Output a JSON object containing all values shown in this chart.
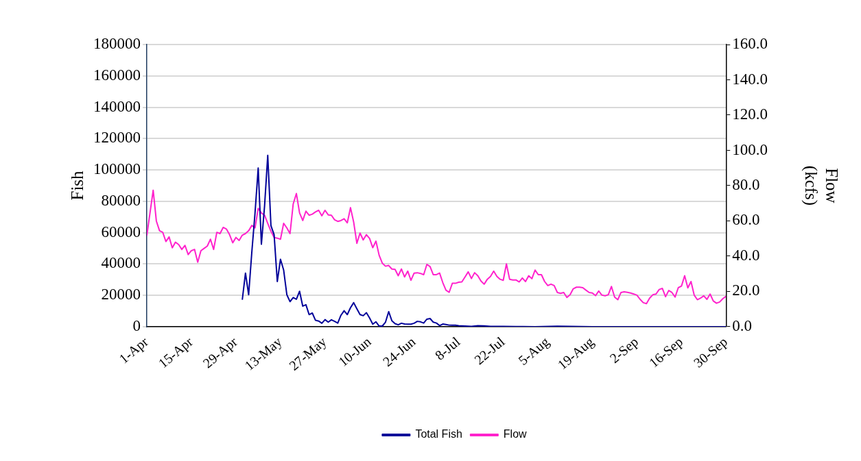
{
  "chart_data": {
    "type": "line",
    "ylabel": "Fish",
    "y2label": "Flow (kcfs)",
    "xlim": [
      "--04-01",
      "--09-30"
    ],
    "xticks": [
      {
        "value": "--04-01",
        "label": "1-Apr"
      },
      {
        "value": "--04-15",
        "label": "15-Apr"
      },
      {
        "value": "--04-29",
        "label": "29-Apr"
      },
      {
        "value": "--05-13",
        "label": "13-May"
      },
      {
        "value": "--05-27",
        "label": "27-May"
      },
      {
        "value": "--06-10",
        "label": "10-Jun"
      },
      {
        "value": "--06-24",
        "label": "24-Jun"
      },
      {
        "value": "--07-08",
        "label": "8-Jul"
      },
      {
        "value": "--07-22",
        "label": "22-Jul"
      },
      {
        "value": "--08-05",
        "label": "5-Aug"
      },
      {
        "value": "--08-19",
        "label": "19-Aug"
      },
      {
        "value": "--09-02",
        "label": "2-Sep"
      },
      {
        "value": "--09-16",
        "label": "16-Sep"
      },
      {
        "value": "--09-30",
        "label": "30-Sep"
      }
    ],
    "ylim": [
      0,
      180000
    ],
    "yticks": [
      0,
      20000,
      40000,
      60000,
      80000,
      100000,
      120000,
      140000,
      160000,
      180000
    ],
    "y2lim": [
      0,
      160
    ],
    "y2ticks": [
      {
        "value": 0,
        "label": "0.0"
      },
      {
        "value": 20,
        "label": "20.0"
      },
      {
        "value": 40,
        "label": "40.0"
      },
      {
        "value": 60,
        "label": "60.0"
      },
      {
        "value": 80,
        "label": "80.0"
      },
      {
        "value": 100,
        "label": "100.0"
      },
      {
        "value": 120,
        "label": "120.0"
      },
      {
        "value": 140,
        "label": "140.0"
      },
      {
        "value": 160,
        "label": "160.0"
      }
    ],
    "grid": "y",
    "legend": "bottom",
    "marker": "none",
    "line_style": "solid",
    "series": [
      {
        "name": "Total Fish",
        "color": "#000099",
        "x": [
          "--05-01",
          "--05-02",
          "--05-03",
          "--05-04",
          "--05-05",
          "--05-06",
          "--05-07",
          "--05-08",
          "--05-09",
          "--05-10",
          "--05-11",
          "--05-12",
          "--05-13",
          "--05-14",
          "--05-15",
          "--05-16",
          "--05-17",
          "--05-18",
          "--05-19",
          "--05-20",
          "--05-21",
          "--05-22",
          "--05-23",
          "--05-24",
          "--05-25",
          "--05-26",
          "--05-27",
          "--05-28",
          "--05-29",
          "--05-30",
          "--05-31",
          "--06-01",
          "--06-02",
          "--06-03",
          "--06-04",
          "--06-05",
          "--06-06",
          "--06-07",
          "--06-08",
          "--06-09",
          "--06-10",
          "--06-11",
          "--06-12",
          "--06-13",
          "--06-14",
          "--06-15",
          "--06-16",
          "--06-17",
          "--06-18",
          "--06-19",
          "--06-20",
          "--06-21",
          "--06-22",
          "--06-23",
          "--06-24",
          "--06-25",
          "--06-26",
          "--06-27",
          "--06-28",
          "--06-29",
          "--06-30",
          "--07-01",
          "--07-02",
          "--07-03",
          "--07-04",
          "--07-05",
          "--07-06",
          "--07-07",
          "--07-08",
          "--07-10",
          "--07-12",
          "--07-14",
          "--07-16",
          "--07-18",
          "--07-22",
          "--07-26",
          "--08-01",
          "--08-08",
          "--08-12",
          "--08-19",
          "--09-02",
          "--09-16",
          "--09-30"
        ],
        "values": [
          17200,
          34200,
          20400,
          47700,
          72500,
          101200,
          52600,
          76900,
          109300,
          64500,
          58700,
          28800,
          43000,
          36100,
          20400,
          16000,
          18600,
          17500,
          22600,
          13100,
          14000,
          7700,
          8700,
          4100,
          3600,
          2200,
          4500,
          2900,
          4400,
          3400,
          2300,
          7300,
          10200,
          7700,
          12100,
          15300,
          11400,
          7700,
          7000,
          8900,
          5500,
          1600,
          3100,
          400,
          400,
          2900,
          9600,
          3800,
          1900,
          1200,
          2200,
          1700,
          1600,
          1600,
          2200,
          3400,
          3100,
          2300,
          4800,
          5200,
          2900,
          2300,
          700,
          1700,
          1400,
          1000,
          900,
          900,
          600,
          400,
          200,
          600,
          500,
          200,
          200,
          100,
          0,
          300,
          200,
          0,
          0,
          0,
          0
        ]
      },
      {
        "name": "Flow",
        "color": "#ff22cc",
        "axis": "y2",
        "x": [
          "--04-01",
          "--04-03",
          "--04-04",
          "--04-05",
          "--04-06",
          "--04-07",
          "--04-08",
          "--04-09",
          "--04-10",
          "--04-11",
          "--04-12",
          "--04-13",
          "--04-14",
          "--04-15",
          "--04-16",
          "--04-17",
          "--04-18",
          "--04-19",
          "--04-20",
          "--04-21",
          "--04-22",
          "--04-23",
          "--04-24",
          "--04-25",
          "--04-26",
          "--04-27",
          "--04-28",
          "--04-29",
          "--04-30",
          "--05-01",
          "--05-02",
          "--05-03",
          "--05-04",
          "--05-05",
          "--05-06",
          "--05-07",
          "--05-08",
          "--05-09",
          "--05-10",
          "--05-11",
          "--05-12",
          "--05-13",
          "--05-14",
          "--05-15",
          "--05-16",
          "--05-17",
          "--05-18",
          "--05-19",
          "--05-20",
          "--05-21",
          "--05-22",
          "--05-23",
          "--05-24",
          "--05-25",
          "--05-26",
          "--05-27",
          "--05-28",
          "--05-29",
          "--05-30",
          "--05-31",
          "--06-01",
          "--06-02",
          "--06-03",
          "--06-04",
          "--06-05",
          "--06-06",
          "--06-07",
          "--06-08",
          "--06-09",
          "--06-10",
          "--06-11",
          "--06-12",
          "--06-13",
          "--06-14",
          "--06-15",
          "--06-16",
          "--06-17",
          "--06-18",
          "--06-19",
          "--06-20",
          "--06-21",
          "--06-22",
          "--06-23",
          "--06-24",
          "--06-25",
          "--06-26",
          "--06-27",
          "--06-28",
          "--06-29",
          "--06-30",
          "--07-01",
          "--07-02",
          "--07-03",
          "--07-04",
          "--07-05",
          "--07-06",
          "--07-07",
          "--07-08",
          "--07-09",
          "--07-10",
          "--07-11",
          "--07-12",
          "--07-13",
          "--07-14",
          "--07-15",
          "--07-16",
          "--07-17",
          "--07-18",
          "--07-19",
          "--07-20",
          "--07-21",
          "--07-22",
          "--07-23",
          "--07-24",
          "--07-25",
          "--07-26",
          "--07-27",
          "--07-28",
          "--07-29",
          "--07-30",
          "--07-31",
          "--08-01",
          "--08-02",
          "--08-03",
          "--08-04",
          "--08-05",
          "--08-06",
          "--08-07",
          "--08-08",
          "--08-09",
          "--08-10",
          "--08-11",
          "--08-12",
          "--08-13",
          "--08-14",
          "--08-15",
          "--08-16",
          "--08-17",
          "--08-18",
          "--08-19",
          "--08-20",
          "--08-21",
          "--08-22",
          "--08-23",
          "--08-24",
          "--08-25",
          "--08-26",
          "--08-27",
          "--08-28",
          "--08-29",
          "--08-30",
          "--08-31",
          "--09-01",
          "--09-02",
          "--09-03",
          "--09-04",
          "--09-05",
          "--09-06",
          "--09-07",
          "--09-08",
          "--09-09",
          "--09-10",
          "--09-11",
          "--09-12",
          "--09-13",
          "--09-14",
          "--09-15",
          "--09-16",
          "--09-17",
          "--09-18",
          "--09-19",
          "--09-20",
          "--09-21",
          "--09-22",
          "--09-23",
          "--09-24",
          "--09-25",
          "--09-26",
          "--09-27",
          "--09-28",
          "--09-29",
          "--09-30"
        ],
        "values": [
          51.6,
          77.4,
          59.9,
          54.4,
          53.5,
          48.3,
          50.9,
          44.7,
          47.9,
          46.6,
          43.8,
          46.1,
          40.9,
          43.1,
          43.8,
          36.6,
          43.1,
          44.4,
          45.7,
          49.6,
          43.8,
          53.5,
          52.8,
          56.3,
          55.4,
          52.2,
          47.6,
          50.6,
          48.9,
          51.9,
          52.8,
          54.4,
          57.4,
          56.0,
          67.1,
          64.5,
          63.2,
          58.6,
          54.1,
          50.6,
          50.2,
          49.6,
          58.6,
          56.0,
          52.8,
          69.6,
          75.5,
          64.5,
          60.2,
          65.5,
          63.2,
          63.8,
          65.1,
          66.0,
          62.9,
          66.0,
          63.4,
          63.2,
          60.6,
          59.7,
          60.2,
          61.2,
          58.9,
          67.5,
          59.3,
          47.3,
          53.1,
          49.2,
          52.2,
          50.0,
          44.8,
          48.5,
          40.5,
          36.0,
          34.3,
          34.7,
          32.7,
          32.5,
          28.9,
          32.7,
          28.2,
          31.5,
          26.3,
          30.4,
          30.6,
          30.2,
          29.5,
          35.3,
          34.1,
          29.5,
          29.5,
          30.4,
          25.0,
          20.7,
          19.5,
          24.6,
          24.6,
          25.2,
          25.4,
          28.2,
          31.1,
          27.3,
          30.6,
          28.9,
          25.9,
          24.1,
          26.9,
          28.5,
          31.5,
          28.5,
          26.9,
          26.3,
          35.6,
          26.9,
          26.5,
          26.5,
          25.4,
          27.6,
          25.6,
          28.9,
          27.2,
          32.1,
          29.5,
          29.5,
          25.6,
          23.3,
          24.1,
          23.3,
          19.4,
          18.9,
          19.4,
          16.6,
          18.1,
          21.5,
          22.4,
          22.4,
          22.1,
          20.7,
          19.4,
          19.1,
          17.6,
          20.2,
          17.9,
          17.5,
          18.1,
          22.8,
          16.8,
          15.3,
          19.4,
          19.8,
          19.5,
          19.1,
          18.5,
          17.9,
          15.5,
          13.6,
          13.1,
          16.2,
          18.1,
          18.5,
          21.1,
          21.7,
          17.0,
          20.5,
          19.4,
          16.8,
          22.1,
          23.0,
          28.9,
          22.0,
          25.6,
          17.9,
          15.3,
          16.2,
          17.5,
          15.5,
          18.5,
          14.6,
          13.3,
          14.0,
          15.9,
          17.2
        ]
      }
    ]
  }
}
